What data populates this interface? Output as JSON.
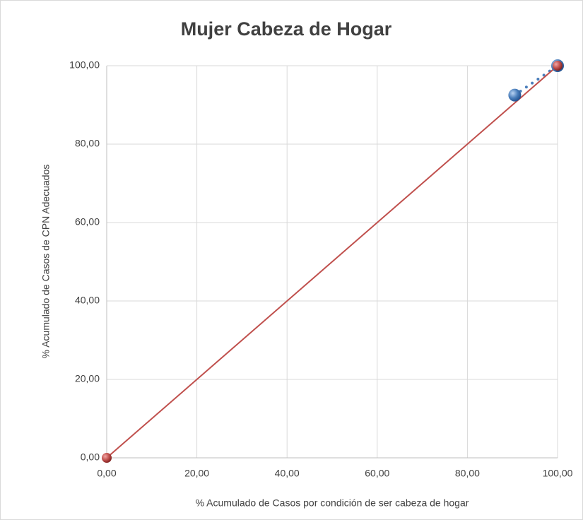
{
  "chart_data": {
    "type": "scatter",
    "title": "Mujer Cabeza de Hogar",
    "xlabel": "% Acumulado de Casos por condición de ser cabeza de hogar",
    "ylabel": "% Acumulado de Casos de CPN Adecuados",
    "series": [
      {
        "color": "#4a7ebb",
        "line": "dotted",
        "x": [
          90.5,
          100
        ],
        "values": [
          92.5,
          100
        ]
      },
      {
        "color": "#c0504d",
        "line": "solid",
        "x": [
          0,
          100
        ],
        "values": [
          0,
          100
        ]
      }
    ],
    "xlim": [
      0,
      100
    ],
    "ylim": [
      0,
      100
    ],
    "xticks": [
      {
        "value": 0,
        "label": "0,00"
      },
      {
        "value": 20,
        "label": "20,00"
      },
      {
        "value": 40,
        "label": "40,00"
      },
      {
        "value": 60,
        "label": "60,00"
      },
      {
        "value": 80,
        "label": "80,00"
      },
      {
        "value": 100,
        "label": "100,00"
      }
    ],
    "yticks": [
      {
        "value": 0,
        "label": "0,00"
      },
      {
        "value": 20,
        "label": "20,00"
      },
      {
        "value": 40,
        "label": "40,00"
      },
      {
        "value": 60,
        "label": "60,00"
      },
      {
        "value": 80,
        "label": "80,00"
      },
      {
        "value": 100,
        "label": "100,00"
      }
    ],
    "grid": true
  }
}
